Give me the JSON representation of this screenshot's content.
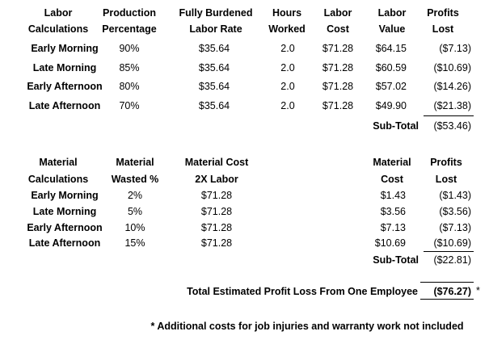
{
  "labor": {
    "headers": [
      [
        "Labor",
        "Calculations"
      ],
      [
        "Production",
        "Percentage"
      ],
      [
        "Fully Burdened",
        "Labor Rate"
      ],
      [
        "Hours",
        "Worked"
      ],
      [
        "Labor",
        "Cost"
      ],
      [
        "Labor",
        "Value"
      ],
      [
        "Profits",
        "Lost"
      ]
    ],
    "rows": [
      [
        "Early Morning",
        "90%",
        "$35.64",
        "2.0",
        "$71.28",
        "$64.15",
        "($7.13)"
      ],
      [
        "Late Morning",
        "85%",
        "$35.64",
        "2.0",
        "$71.28",
        "$60.59",
        "($10.69)"
      ],
      [
        "Early Afternoon",
        "80%",
        "$35.64",
        "2.0",
        "$71.28",
        "$57.02",
        "($14.26)"
      ],
      [
        "Late Afternoon",
        "70%",
        "$35.64",
        "2.0",
        "$71.28",
        "$49.90",
        "($21.38)"
      ]
    ],
    "subtotal": {
      "label": "Sub-Total",
      "value": "($53.46)"
    }
  },
  "material": {
    "headers": [
      [
        "Material",
        "Calculations"
      ],
      [
        "Material",
        "Wasted %"
      ],
      [
        "Material Cost",
        "2X Labor"
      ],
      [
        "Material",
        "Cost"
      ],
      [
        "Profits",
        "Lost"
      ]
    ],
    "rows": [
      [
        "Early Morning",
        "2%",
        "$71.28",
        "$1.43",
        "($1.43)"
      ],
      [
        "Late Morning",
        "5%",
        "$71.28",
        "$3.56",
        "($3.56)"
      ],
      [
        "Early Afternoon",
        "10%",
        "$71.28",
        "$7.13",
        "($7.13)"
      ],
      [
        "Late Afternoon",
        "15%",
        "$71.28",
        "$10.69",
        "($10.69)"
      ]
    ],
    "subtotal": {
      "label": "Sub-Total",
      "value": "($22.81)"
    }
  },
  "total": {
    "label": "Total Estimated Profit Loss From One Employee",
    "value": "($76.27)",
    "marker": "*"
  },
  "footnote": "* Additional costs for job injuries and warranty work not included"
}
